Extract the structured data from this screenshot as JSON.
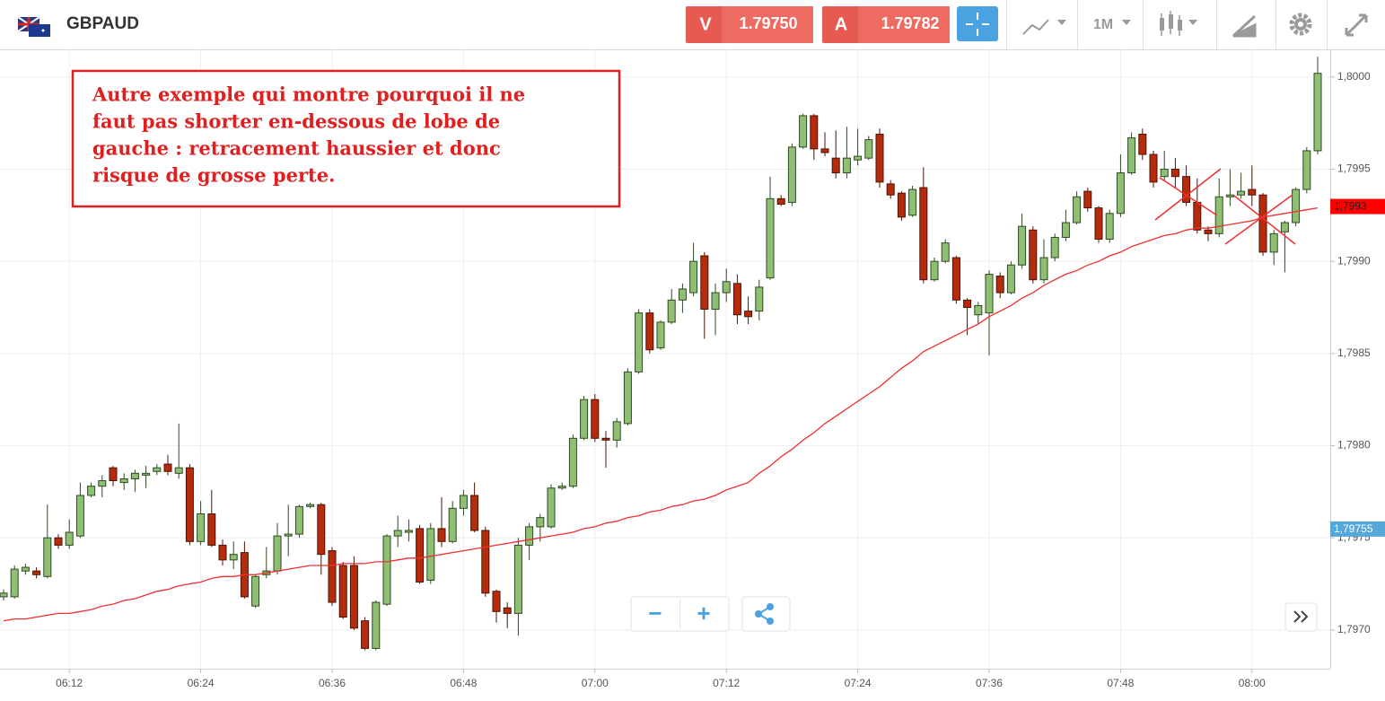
{
  "toolbar": {
    "symbol": "GBPAUD",
    "sell_label": "V",
    "sell_price": "1.79750",
    "buy_label": "A",
    "buy_price": "1.79782",
    "timeframe": "1M"
  },
  "controls": [
    "−",
    "+"
  ],
  "chart_data": {
    "type": "candlestick",
    "annotation": [
      "Autre exemple qui montre pourquoi il ne",
      "faut pas shorter en-dessous de lobe de",
      "gauche : retracement haussier et donc",
      "risque de grosse perte."
    ],
    "categories": [
      null,
      null,
      null,
      null,
      null,
      null,
      "06:12",
      null,
      null,
      null,
      null,
      null,
      null,
      null,
      null,
      null,
      null,
      null,
      "06:24",
      null,
      null,
      null,
      null,
      null,
      null,
      null,
      null,
      null,
      null,
      null,
      "06:36",
      null,
      null,
      null,
      null,
      null,
      null,
      null,
      null,
      null,
      null,
      null,
      "06:48",
      null,
      null,
      null,
      null,
      null,
      null,
      null,
      null,
      null,
      null,
      null,
      "07:00",
      null,
      null,
      null,
      null,
      null,
      null,
      null,
      null,
      null,
      null,
      null,
      "07:12",
      null,
      null,
      null,
      null,
      null,
      null,
      null,
      null,
      null,
      null,
      null,
      "07:24",
      null,
      null,
      null,
      null,
      null,
      null,
      null,
      null,
      null,
      null,
      null,
      "07:36",
      null,
      null,
      null,
      null,
      null,
      null,
      null,
      null,
      null,
      null,
      null,
      "07:48",
      null,
      null,
      null,
      null,
      null,
      null,
      null,
      null,
      null,
      null,
      null,
      "08:00",
      null,
      null,
      null,
      null,
      null,
      null
    ],
    "open": [
      1.79718,
      1.79718,
      1.79732,
      1.79732,
      1.79729,
      1.7975,
      1.79746,
      1.79751,
      1.79773,
      1.79778,
      1.79788,
      1.7978,
      1.79782,
      1.79784,
      1.79786,
      1.7979,
      1.79785,
      1.79788,
      1.79748,
      1.79763,
      1.79746,
      1.79738,
      1.79742,
      1.79713,
      1.7973,
      1.79732,
      1.79751,
      1.79752,
      1.79767,
      1.79768,
      1.79743,
      1.79735,
      1.79735,
      1.79705,
      1.7969,
      1.79714,
      1.79751,
      1.79753,
      1.79755,
      1.79727,
      1.79755,
      1.79748,
      1.79766,
      1.79773,
      1.79754,
      1.79721,
      1.79712,
      1.79709,
      1.79746,
      1.79756,
      1.79756,
      1.79777,
      1.79778,
      1.79804,
      1.79825,
      1.79804,
      1.79803,
      1.79812,
      1.7984,
      1.79872,
      1.79853,
      1.79867,
      1.79879,
      1.79883,
      1.79903,
      1.79874,
      1.79883,
      1.79888,
      1.79873,
      1.79873,
      1.79891,
      1.79934,
      1.79932,
      1.79962,
      1.79979,
      1.79961,
      1.79956,
      1.79948,
      1.79955,
      1.79956,
      1.79969,
      1.79942,
      1.79937,
      1.79925,
      1.7994,
      1.7989,
      1.799,
      1.79902,
      1.79879,
      1.79871,
      1.79872,
      1.79892,
      1.79883,
      1.79898,
      1.79917,
      1.7989,
      1.79902,
      1.79913,
      1.79921,
      1.79938,
      1.79929,
      1.79912,
      1.79926,
      1.79948,
      1.79969,
      1.79958,
      1.79946,
      1.7995,
      1.79946,
      1.79932,
      1.79917,
      1.79915,
      1.79935,
      1.79936,
      1.79939,
      1.79936,
      1.79905,
      1.79916,
      1.79921,
      1.79939,
      1.7996
    ],
    "high": [
      1.79722,
      1.79735,
      1.79736,
      1.79734,
      1.79768,
      1.79752,
      1.7976,
      1.7978,
      1.7978,
      1.79784,
      1.79789,
      1.79785,
      1.79787,
      1.79789,
      1.7979,
      1.79795,
      1.79812,
      1.7979,
      1.7977,
      1.79776,
      1.79749,
      1.79748,
      1.79748,
      1.7973,
      1.79745,
      1.79758,
      1.79768,
      1.79768,
      1.79769,
      1.79769,
      1.79745,
      1.79737,
      1.7974,
      1.79707,
      1.79716,
      1.79752,
      1.79762,
      1.7976,
      1.79757,
      1.79758,
      1.79772,
      1.7977,
      1.79776,
      1.7978,
      1.79756,
      1.79722,
      1.79715,
      1.7975,
      1.79758,
      1.79763,
      1.79779,
      1.7978,
      1.79806,
      1.79827,
      1.79828,
      1.79808,
      1.79815,
      1.79842,
      1.79874,
      1.79874,
      1.79868,
      1.79885,
      1.79888,
      1.7991,
      1.79905,
      1.79888,
      1.79896,
      1.79893,
      1.79881,
      1.7989,
      1.79946,
      1.79936,
      1.79964,
      1.7998,
      1.7998,
      1.7997,
      1.79971,
      1.79973,
      1.79972,
      1.79968,
      1.79972,
      1.79944,
      1.79938,
      1.79941,
      1.79951,
      1.79902,
      1.79912,
      1.79903,
      1.7988,
      1.79878,
      1.79895,
      1.79894,
      1.799,
      1.79926,
      1.79919,
      1.79912,
      1.79915,
      1.79928,
      1.79938,
      1.7994,
      1.7993,
      1.79928,
      1.79958,
      1.7997,
      1.79972,
      1.7996,
      1.7996,
      1.79956,
      1.79952,
      1.79945,
      1.79919,
      1.79945,
      1.7995,
      1.79948,
      1.79952,
      1.79937,
      1.79917,
      1.79922,
      1.7994,
      1.79962,
      1.80011
    ],
    "low": [
      1.79716,
      1.79717,
      1.7973,
      1.79728,
      1.79728,
      1.79744,
      1.79744,
      1.7975,
      1.79772,
      1.79772,
      1.79778,
      1.79776,
      1.79775,
      1.79777,
      1.79784,
      1.79784,
      1.79782,
      1.79746,
      1.79746,
      1.79745,
      1.79735,
      1.79733,
      1.79717,
      1.79712,
      1.79728,
      1.7973,
      1.7974,
      1.7975,
      1.79766,
      1.7973,
      1.79713,
      1.79706,
      1.797,
      1.79689,
      1.79689,
      1.79713,
      1.79745,
      1.79748,
      1.79725,
      1.79725,
      1.79745,
      1.79747,
      1.79762,
      1.79753,
      1.79718,
      1.79704,
      1.79701,
      1.79697,
      1.79738,
      1.79748,
      1.79755,
      1.79776,
      1.79777,
      1.79803,
      1.79802,
      1.79788,
      1.79799,
      1.79811,
      1.79839,
      1.7985,
      1.79852,
      1.79866,
      1.79872,
      1.79881,
      1.79858,
      1.7986,
      1.79878,
      1.79866,
      1.79866,
      1.79868,
      1.7989,
      1.7993,
      1.7993,
      1.79961,
      1.79955,
      1.79957,
      1.79945,
      1.79945,
      1.79952,
      1.79955,
      1.7994,
      1.79934,
      1.79922,
      1.79924,
      1.79888,
      1.79889,
      1.79899,
      1.79877,
      1.7986,
      1.79866,
      1.79849,
      1.7988,
      1.79882,
      1.79896,
      1.79888,
      1.79888,
      1.799,
      1.79911,
      1.7992,
      1.79927,
      1.7991,
      1.7991,
      1.79924,
      1.79947,
      1.79955,
      1.7994,
      1.79944,
      1.7994,
      1.7993,
      1.79915,
      1.79911,
      1.79913,
      1.7993,
      1.79934,
      1.7993,
      1.79903,
      1.79898,
      1.79894,
      1.79919,
      1.79937,
      1.79958
    ],
    "close": [
      1.7972,
      1.79733,
      1.79734,
      1.7973,
      1.7975,
      1.79746,
      1.79753,
      1.79773,
      1.79778,
      1.79781,
      1.79781,
      1.79782,
      1.79785,
      1.79785,
      1.79788,
      1.79786,
      1.79788,
      1.79748,
      1.79763,
      1.79746,
      1.79738,
      1.79741,
      1.79718,
      1.79729,
      1.79732,
      1.79751,
      1.79752,
      1.79767,
      1.79768,
      1.79741,
      1.79715,
      1.79707,
      1.79701,
      1.7969,
      1.79715,
      1.79751,
      1.79754,
      1.79754,
      1.79726,
      1.79755,
      1.79748,
      1.79766,
      1.79773,
      1.79754,
      1.7972,
      1.7971,
      1.79709,
      1.79746,
      1.79756,
      1.79761,
      1.79777,
      1.79778,
      1.79804,
      1.79825,
      1.79804,
      1.79803,
      1.79813,
      1.7984,
      1.79872,
      1.79852,
      1.79867,
      1.79879,
      1.79885,
      1.799,
      1.79874,
      1.79883,
      1.79889,
      1.79871,
      1.7987,
      1.79886,
      1.79934,
      1.79931,
      1.79962,
      1.79979,
      1.79961,
      1.79959,
      1.79948,
      1.79956,
      1.79957,
      1.79966,
      1.79943,
      1.79936,
      1.79924,
      1.79939,
      1.7989,
      1.799,
      1.7991,
      1.79879,
      1.79875,
      1.79876,
      1.79893,
      1.79883,
      1.79898,
      1.79919,
      1.7989,
      1.79902,
      1.79913,
      1.79921,
      1.79935,
      1.79929,
      1.79912,
      1.79926,
      1.79948,
      1.79967,
      1.79958,
      1.79943,
      1.7995,
      1.79946,
      1.79932,
      1.79917,
      1.79915,
      1.79935,
      1.79936,
      1.79938,
      1.79936,
      1.79905,
      1.79915,
      1.79921,
      1.79939,
      1.7996,
      1.80002
    ],
    "up_color": "#8fbf73",
    "down_color": "#b52b0c",
    "ma": {
      "color": "#f03030",
      "values": [
        1.79705,
        1.79706,
        1.79706,
        1.79707,
        1.79708,
        1.79709,
        1.79709,
        1.7971,
        1.79711,
        1.79713,
        1.79714,
        1.79716,
        1.79717,
        1.79719,
        1.79721,
        1.79722,
        1.79724,
        1.79725,
        1.79726,
        1.79728,
        1.79729,
        1.79729,
        1.7973,
        1.7973,
        1.79731,
        1.79732,
        1.79733,
        1.79734,
        1.79735,
        1.79735,
        1.79735,
        1.79736,
        1.79736,
        1.79736,
        1.79737,
        1.79737,
        1.79738,
        1.79739,
        1.79739,
        1.7974,
        1.79741,
        1.79742,
        1.79743,
        1.79744,
        1.79745,
        1.79746,
        1.79747,
        1.79748,
        1.79749,
        1.7975,
        1.79751,
        1.79752,
        1.79753,
        1.79755,
        1.79756,
        1.79758,
        1.79759,
        1.79761,
        1.79762,
        1.79764,
        1.79765,
        1.79767,
        1.79768,
        1.7977,
        1.79771,
        1.79773,
        1.79776,
        1.79778,
        1.7978,
        1.79785,
        1.79789,
        1.79794,
        1.79798,
        1.79803,
        1.79807,
        1.79812,
        1.79816,
        1.7982,
        1.79824,
        1.79828,
        1.79832,
        1.79837,
        1.79842,
        1.79846,
        1.79851,
        1.79854,
        1.79857,
        1.7986,
        1.79863,
        1.79866,
        1.7987,
        1.79873,
        1.79876,
        1.7988,
        1.79883,
        1.79887,
        1.7989,
        1.79893,
        1.79895,
        1.79898,
        1.799,
        1.79903,
        1.79905,
        1.79908,
        1.7991,
        1.79912,
        1.79914,
        1.79915,
        1.79917,
        1.79918,
        1.79918,
        1.79919,
        1.7992,
        1.79921,
        1.79922,
        1.79924,
        1.79925,
        1.79926,
        1.79927,
        1.79928,
        1.79929
      ]
    },
    "ylim": [
      1.79679,
      1.80015
    ],
    "yticks": [
      {
        "value": 1.797,
        "label": "1,7970"
      },
      {
        "value": 1.7975,
        "label": "1,7975"
      },
      {
        "value": 1.798,
        "label": "1,7980"
      },
      {
        "value": 1.7985,
        "label": "1,7985"
      },
      {
        "value": 1.799,
        "label": "1,7990"
      },
      {
        "value": 1.7995,
        "label": "1,7995"
      },
      {
        "value": 1.8,
        "label": "1,8000"
      }
    ],
    "grid": true,
    "price_tags": [
      {
        "value": 1.7993,
        "label": "1,7993",
        "color": "#ff0000"
      },
      {
        "value": 1.79755,
        "label": "1,79755",
        "color": "#56a8db"
      }
    ]
  }
}
